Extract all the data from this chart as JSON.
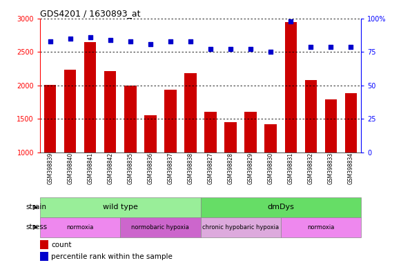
{
  "title": "GDS4201 / 1630893_at",
  "samples": [
    "GSM398839",
    "GSM398840",
    "GSM398841",
    "GSM398842",
    "GSM398835",
    "GSM398836",
    "GSM398837",
    "GSM398838",
    "GSM398827",
    "GSM398828",
    "GSM398829",
    "GSM398830",
    "GSM398831",
    "GSM398832",
    "GSM398833",
    "GSM398834"
  ],
  "counts": [
    2010,
    2240,
    2650,
    2220,
    2000,
    1560,
    1940,
    2180,
    1610,
    1450,
    1610,
    1420,
    2950,
    2080,
    1790,
    1880
  ],
  "percentile_ranks": [
    83,
    85,
    86,
    84,
    83,
    81,
    83,
    83,
    77,
    77,
    77,
    75,
    98,
    79,
    79,
    79
  ],
  "ylim_left": [
    1000,
    3000
  ],
  "ylim_right": [
    0,
    100
  ],
  "yticks_left": [
    1000,
    1500,
    2000,
    2500,
    3000
  ],
  "yticks_right": [
    0,
    25,
    50,
    75,
    100
  ],
  "bar_color": "#cc0000",
  "dot_color": "#0000cc",
  "strain_groups": [
    {
      "label": "wild type",
      "start": 0,
      "end": 8,
      "color": "#99ee99"
    },
    {
      "label": "dmDys",
      "start": 8,
      "end": 16,
      "color": "#66dd66"
    }
  ],
  "stress_groups": [
    {
      "label": "normoxia",
      "start": 0,
      "end": 4,
      "color": "#ee88ee"
    },
    {
      "label": "normobaric hypoxia",
      "start": 4,
      "end": 8,
      "color": "#cc66cc"
    },
    {
      "label": "chronic hypobaric hypoxia",
      "start": 8,
      "end": 12,
      "color": "#ddaadd"
    },
    {
      "label": "normoxia",
      "start": 12,
      "end": 16,
      "color": "#ee88ee"
    }
  ],
  "legend_count_label": "count",
  "legend_pct_label": "percentile rank within the sample",
  "strain_label": "strain",
  "stress_label": "stress",
  "bg_color": "#ffffff"
}
